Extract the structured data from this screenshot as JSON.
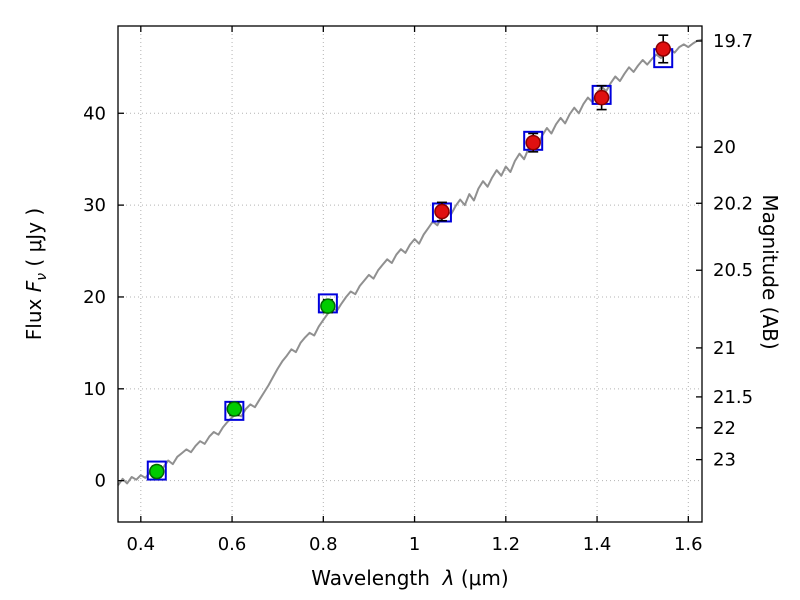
{
  "chart_data": {
    "type": "line",
    "title": "",
    "xlabel_parts": {
      "text": "Wavelength",
      "symbol": "λ",
      "unit": "(μm)"
    },
    "ylabel_parts": {
      "prefix": "Flux  ",
      "symbol": "F",
      "sub": "ν",
      "suffix": " ( μJy )"
    },
    "xlim": [
      0.35,
      1.63
    ],
    "ylim": [
      -4.5,
      49.5
    ],
    "grid": true,
    "x_ticks": [
      0.4,
      0.6,
      0.8,
      1,
      1.2,
      1.4,
      1.6
    ],
    "x_tick_labels": [
      "0.4",
      "0.6",
      "0.8",
      "1",
      "1.2",
      "1.4",
      "1.6"
    ],
    "y_ticks": [
      0,
      10,
      20,
      30,
      40
    ],
    "y_tick_labels": [
      "0",
      "10",
      "20",
      "30",
      "40"
    ],
    "right_axis": {
      "label": "Magnitude (AB)",
      "ticks": [
        19.7,
        20,
        20.2,
        20.5,
        21,
        21.5,
        22,
        23
      ],
      "tick_labels": [
        "19.7",
        "20",
        "20.2",
        "20.5",
        "21",
        "21.5",
        "22",
        "23"
      ],
      "zeropoint": 23.9
    },
    "colors": {
      "spectrum": "#909090",
      "green": "#00cc00",
      "green_edge": "#006600",
      "red": "#e01010",
      "red_edge": "#8b0000",
      "square": "#0000dd",
      "errorbar": "#000000",
      "grid": "#b3b3b3",
      "frame": "#000000"
    },
    "spectrum": {
      "x_start": 0.35,
      "x_step": 0.01,
      "y": [
        -0.5,
        0.2,
        -0.3,
        0.4,
        0.1,
        0.6,
        0.3,
        0.9,
        1.2,
        0.8,
        1.5,
        2.2,
        1.8,
        2.6,
        3.0,
        3.4,
        3.1,
        3.8,
        4.3,
        4.0,
        4.8,
        5.3,
        5.0,
        5.8,
        6.4,
        6.9,
        7.3,
        7.0,
        7.8,
        8.3,
        8.0,
        8.8,
        9.6,
        10.4,
        11.3,
        12.2,
        13.0,
        13.6,
        14.3,
        14.0,
        15.0,
        15.6,
        16.1,
        15.8,
        16.8,
        17.5,
        18.2,
        18.8,
        18.5,
        19.3,
        20.0,
        20.6,
        20.3,
        21.2,
        21.8,
        22.4,
        22.0,
        22.9,
        23.5,
        24.1,
        23.7,
        24.6,
        25.2,
        24.8,
        25.7,
        26.3,
        25.8,
        26.8,
        27.5,
        28.2,
        27.8,
        28.8,
        29.4,
        29.0,
        29.9,
        30.6,
        30.0,
        31.2,
        30.5,
        31.8,
        32.6,
        32.0,
        33.0,
        33.8,
        33.2,
        34.2,
        33.6,
        34.8,
        35.6,
        35.0,
        36.2,
        37.0,
        36.4,
        37.6,
        38.4,
        37.8,
        38.8,
        39.5,
        38.9,
        39.9,
        40.6,
        40.0,
        41.0,
        41.7,
        41.2,
        42.2,
        42.9,
        42.4,
        43.3,
        44.0,
        43.5,
        44.3,
        45.0,
        44.5,
        45.2,
        45.8,
        45.3,
        45.9,
        46.4,
        46.0,
        46.6,
        47.0,
        46.6,
        47.2,
        47.5,
        47.2,
        47.6,
        47.9,
        48.0
      ]
    },
    "model_photometry": [
      {
        "x": 0.435,
        "flux": 1.1
      },
      {
        "x": 0.605,
        "flux": 7.6
      },
      {
        "x": 0.81,
        "flux": 19.3
      },
      {
        "x": 1.06,
        "flux": 29.2
      },
      {
        "x": 1.26,
        "flux": 37.0
      },
      {
        "x": 1.41,
        "flux": 42.0
      },
      {
        "x": 1.545,
        "flux": 46.0
      }
    ],
    "observed_photometry": [
      {
        "x": 0.435,
        "flux": 1.0,
        "err": 0.6,
        "color": "green"
      },
      {
        "x": 0.605,
        "flux": 7.8,
        "err": 0.7,
        "color": "green"
      },
      {
        "x": 0.81,
        "flux": 19.0,
        "err": 0.7,
        "color": "green"
      },
      {
        "x": 1.06,
        "flux": 29.3,
        "err": 1.0,
        "color": "red"
      },
      {
        "x": 1.26,
        "flux": 36.8,
        "err": 1.0,
        "color": "red"
      },
      {
        "x": 1.41,
        "flux": 41.7,
        "err": 1.3,
        "color": "red"
      },
      {
        "x": 1.545,
        "flux": 47.0,
        "err": 1.5,
        "color": "red"
      }
    ]
  }
}
